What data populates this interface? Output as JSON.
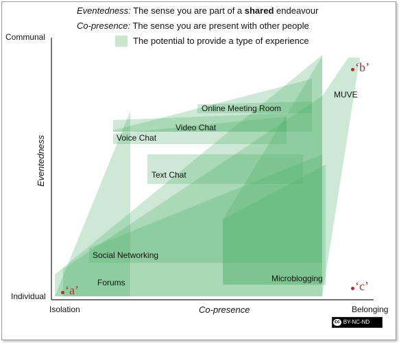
{
  "header": {
    "line1_term": "Eventedness:",
    "line1_pre": " The sense you are part of a ",
    "line1_bold": "shared",
    "line1_post": " endeavour",
    "line2_term": "Co-presence:",
    "line2_rest": " The sense you are present with other people",
    "legend_text": "The potential to provide a type of experience"
  },
  "axes": {
    "y_top": "Communal",
    "y_bottom": "Individual",
    "y_title": "Eventedness",
    "x_left": "Isolation",
    "x_right": "Belonging",
    "x_title": "Co-presence"
  },
  "regions": [
    {
      "name": "Online Meeting Room"
    },
    {
      "name": "Video Chat"
    },
    {
      "name": "Voice Chat"
    },
    {
      "name": "Text Chat"
    },
    {
      "name": "MUVE"
    },
    {
      "name": "Social Networking"
    },
    {
      "name": "Forums"
    },
    {
      "name": "Microblogging"
    }
  ],
  "points": {
    "a": "‘a’",
    "b": "‘b’",
    "c": "‘c’"
  },
  "license": {
    "badge": "cc",
    "text": "BY-NC-ND"
  },
  "colors": {
    "region_fill": "#4caf67",
    "region_opacity": 0.28,
    "legend_swatch": "#c7e6cd",
    "point_color": "#b03030"
  }
}
